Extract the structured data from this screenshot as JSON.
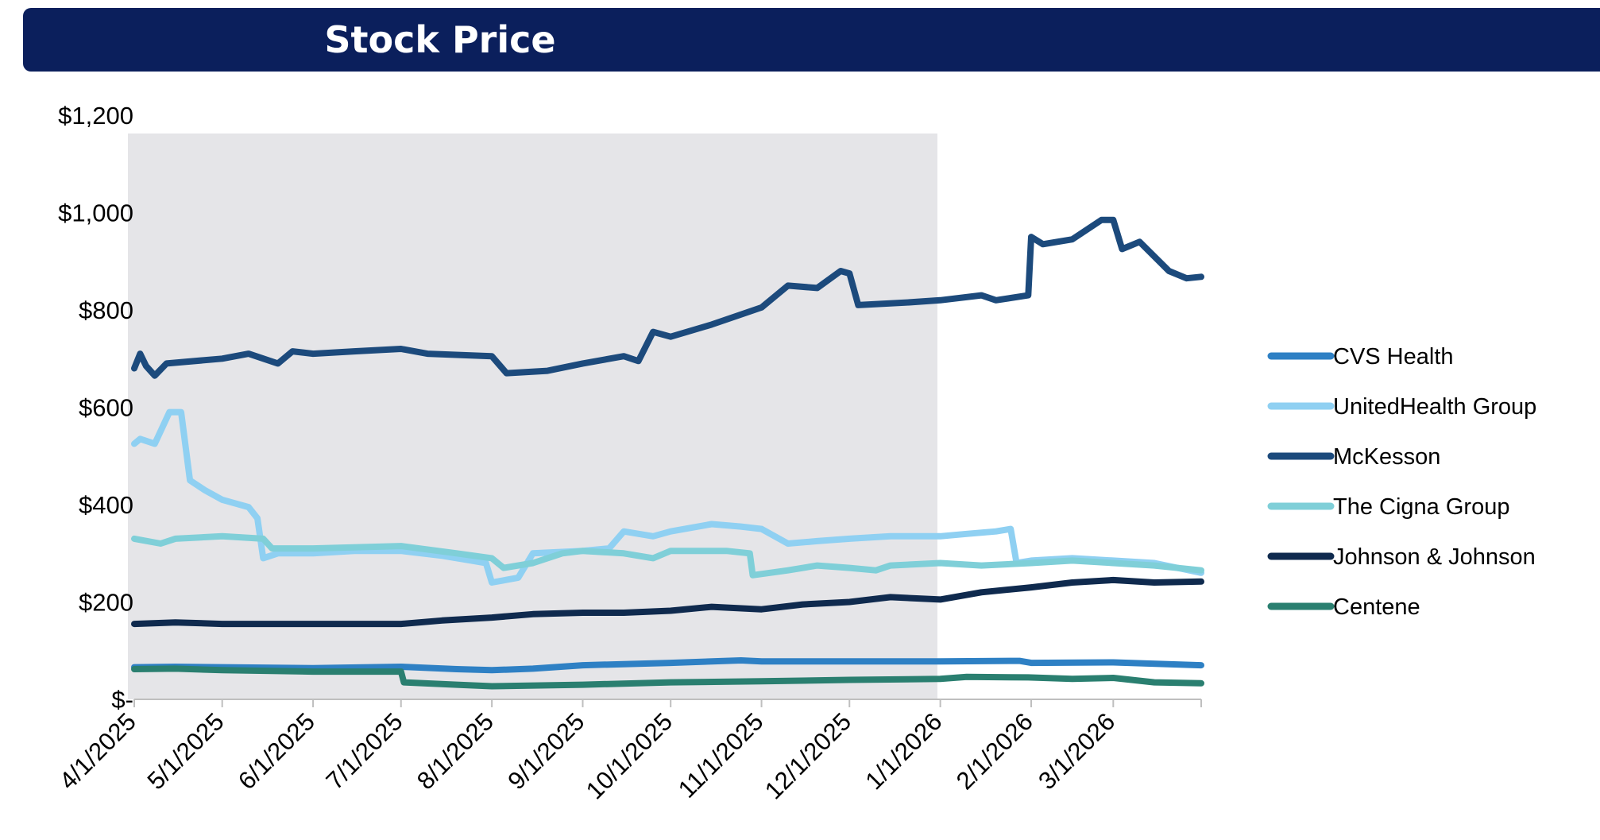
{
  "title": "Stock Price",
  "chart_data": {
    "type": "line",
    "title": "Stock Price",
    "xlabel": "",
    "ylabel": "",
    "ylim": [
      0,
      1200
    ],
    "y_ticks": [
      {
        "value": 0,
        "label": "$-"
      },
      {
        "value": 200,
        "label": "$200"
      },
      {
        "value": 400,
        "label": "$400"
      },
      {
        "value": 600,
        "label": "$600"
      },
      {
        "value": 800,
        "label": "$800"
      },
      {
        "value": 1000,
        "label": "$1,000"
      },
      {
        "value": 1200,
        "label": "$1,200"
      }
    ],
    "x_range": [
      "4/1/2025",
      "3/31/2026"
    ],
    "x_ticks": [
      "4/1/2025",
      "5/1/2025",
      "6/1/2025",
      "7/1/2025",
      "8/1/2025",
      "9/1/2025",
      "10/1/2025",
      "11/1/2025",
      "12/1/2025",
      "1/1/2026",
      "2/1/2026",
      "3/1/2026"
    ],
    "shaded_period": [
      "4/1/2025",
      "12/31/2025"
    ],
    "grid": false,
    "legend_position": "right",
    "series": [
      {
        "name": "CVS Health",
        "color": "#2e80c4",
        "points": [
          [
            "4/1/2025",
            66
          ],
          [
            "4/15/2025",
            67
          ],
          [
            "5/1/2025",
            66
          ],
          [
            "6/1/2025",
            64
          ],
          [
            "7/1/2025",
            67
          ],
          [
            "7/20/2025",
            62
          ],
          [
            "8/1/2025",
            60
          ],
          [
            "8/15/2025",
            63
          ],
          [
            "9/1/2025",
            70
          ],
          [
            "10/1/2025",
            75
          ],
          [
            "10/25/2025",
            80
          ],
          [
            "11/1/2025",
            78
          ],
          [
            "12/1/2025",
            78
          ],
          [
            "1/1/2026",
            78
          ],
          [
            "1/28/2026",
            79
          ],
          [
            "2/1/2026",
            75
          ],
          [
            "3/1/2026",
            76
          ],
          [
            "3/31/2026",
            70
          ]
        ]
      },
      {
        "name": "UnitedHealth Group",
        "color": "#8fd0f2",
        "points": [
          [
            "4/1/2025",
            525
          ],
          [
            "4/3/2025",
            535
          ],
          [
            "4/8/2025",
            525
          ],
          [
            "4/13/2025",
            590
          ],
          [
            "4/17/2025",
            590
          ],
          [
            "4/20/2025",
            450
          ],
          [
            "4/25/2025",
            430
          ],
          [
            "5/1/2025",
            410
          ],
          [
            "5/10/2025",
            395
          ],
          [
            "5/13/2025",
            372
          ],
          [
            "5/15/2025",
            290
          ],
          [
            "5/20/2025",
            300
          ],
          [
            "6/1/2025",
            300
          ],
          [
            "6/15/2025",
            305
          ],
          [
            "7/1/2025",
            305
          ],
          [
            "7/15/2025",
            295
          ],
          [
            "7/25/2025",
            285
          ],
          [
            "7/30/2025",
            280
          ],
          [
            "8/1/2025",
            240
          ],
          [
            "8/10/2025",
            250
          ],
          [
            "8/15/2025",
            300
          ],
          [
            "9/1/2025",
            305
          ],
          [
            "9/10/2025",
            310
          ],
          [
            "9/15/2025",
            345
          ],
          [
            "9/25/2025",
            335
          ],
          [
            "10/1/2025",
            345
          ],
          [
            "10/15/2025",
            360
          ],
          [
            "10/25/2025",
            355
          ],
          [
            "11/1/2025",
            350
          ],
          [
            "11/10/2025",
            320
          ],
          [
            "11/20/2025",
            325
          ],
          [
            "12/1/2025",
            330
          ],
          [
            "12/15/2025",
            335
          ],
          [
            "1/1/2026",
            335
          ],
          [
            "1/10/2026",
            340
          ],
          [
            "1/20/2026",
            345
          ],
          [
            "1/25/2026",
            350
          ],
          [
            "1/27/2026",
            280
          ],
          [
            "2/1/2026",
            285
          ],
          [
            "2/15/2026",
            290
          ],
          [
            "3/1/2026",
            285
          ],
          [
            "3/15/2026",
            280
          ],
          [
            "3/31/2026",
            260
          ]
        ]
      },
      {
        "name": "McKesson",
        "color": "#1c4a7c",
        "points": [
          [
            "4/1/2025",
            680
          ],
          [
            "4/3/2025",
            710
          ],
          [
            "4/5/2025",
            685
          ],
          [
            "4/8/2025",
            665
          ],
          [
            "4/12/2025",
            690
          ],
          [
            "5/1/2025",
            700
          ],
          [
            "5/10/2025",
            710
          ],
          [
            "5/20/2025",
            690
          ],
          [
            "5/25/2025",
            715
          ],
          [
            "6/1/2025",
            710
          ],
          [
            "6/15/2025",
            715
          ],
          [
            "7/1/2025",
            720
          ],
          [
            "7/10/2025",
            710
          ],
          [
            "8/1/2025",
            705
          ],
          [
            "8/6/2025",
            670
          ],
          [
            "8/20/2025",
            675
          ],
          [
            "9/1/2025",
            690
          ],
          [
            "9/15/2025",
            705
          ],
          [
            "9/20/2025",
            695
          ],
          [
            "9/25/2025",
            755
          ],
          [
            "10/1/2025",
            745
          ],
          [
            "10/15/2025",
            770
          ],
          [
            "11/1/2025",
            805
          ],
          [
            "11/10/2025",
            850
          ],
          [
            "11/20/2025",
            845
          ],
          [
            "11/28/2025",
            880
          ],
          [
            "12/1/2025",
            875
          ],
          [
            "12/4/2025",
            810
          ],
          [
            "12/20/2025",
            815
          ],
          [
            "1/1/2026",
            820
          ],
          [
            "1/15/2026",
            830
          ],
          [
            "1/20/2026",
            820
          ],
          [
            "1/31/2026",
            830
          ],
          [
            "2/1/2026",
            950
          ],
          [
            "2/5/2026",
            935
          ],
          [
            "2/15/2026",
            945
          ],
          [
            "2/25/2026",
            985
          ],
          [
            "3/1/2026",
            985
          ],
          [
            "3/4/2026",
            925
          ],
          [
            "3/10/2026",
            940
          ],
          [
            "3/20/2026",
            880
          ],
          [
            "3/26/2026",
            865
          ],
          [
            "3/31/2026",
            868
          ]
        ]
      },
      {
        "name": "The Cigna Group",
        "color": "#7fcfd8",
        "points": [
          [
            "4/1/2025",
            330
          ],
          [
            "4/10/2025",
            320
          ],
          [
            "4/15/2025",
            330
          ],
          [
            "5/1/2025",
            335
          ],
          [
            "5/15/2025",
            330
          ],
          [
            "5/18/2025",
            310
          ],
          [
            "6/1/2025",
            310
          ],
          [
            "7/1/2025",
            315
          ],
          [
            "7/20/2025",
            300
          ],
          [
            "8/1/2025",
            290
          ],
          [
            "8/5/2025",
            270
          ],
          [
            "8/15/2025",
            280
          ],
          [
            "8/25/2025",
            300
          ],
          [
            "9/1/2025",
            305
          ],
          [
            "9/15/2025",
            300
          ],
          [
            "9/25/2025",
            290
          ],
          [
            "10/1/2025",
            305
          ],
          [
            "10/20/2025",
            305
          ],
          [
            "10/28/2025",
            300
          ],
          [
            "10/29/2025",
            255
          ],
          [
            "11/10/2025",
            265
          ],
          [
            "11/20/2025",
            275
          ],
          [
            "12/1/2025",
            270
          ],
          [
            "12/10/2025",
            265
          ],
          [
            "12/15/2025",
            275
          ],
          [
            "1/1/2026",
            280
          ],
          [
            "1/15/2026",
            275
          ],
          [
            "2/1/2026",
            280
          ],
          [
            "2/15/2026",
            285
          ],
          [
            "3/1/2026",
            280
          ],
          [
            "3/15/2026",
            275
          ],
          [
            "3/31/2026",
            265
          ]
        ]
      },
      {
        "name": "Johnson & Johnson",
        "color": "#0f2a4e",
        "points": [
          [
            "4/1/2025",
            155
          ],
          [
            "4/15/2025",
            158
          ],
          [
            "5/1/2025",
            155
          ],
          [
            "6/1/2025",
            155
          ],
          [
            "7/1/2025",
            155
          ],
          [
            "7/15/2025",
            162
          ],
          [
            "8/1/2025",
            168
          ],
          [
            "8/15/2025",
            175
          ],
          [
            "9/1/2025",
            178
          ],
          [
            "9/15/2025",
            178
          ],
          [
            "10/1/2025",
            182
          ],
          [
            "10/15/2025",
            190
          ],
          [
            "11/1/2025",
            185
          ],
          [
            "11/15/2025",
            195
          ],
          [
            "12/1/2025",
            200
          ],
          [
            "12/15/2025",
            210
          ],
          [
            "1/1/2026",
            205
          ],
          [
            "1/15/2026",
            220
          ],
          [
            "2/1/2026",
            230
          ],
          [
            "2/15/2026",
            240
          ],
          [
            "3/1/2026",
            245
          ],
          [
            "3/15/2026",
            240
          ],
          [
            "3/31/2026",
            242
          ]
        ]
      },
      {
        "name": "Centene",
        "color": "#2a7f70",
        "points": [
          [
            "4/1/2025",
            62
          ],
          [
            "4/15/2025",
            63
          ],
          [
            "5/1/2025",
            60
          ],
          [
            "6/1/2025",
            57
          ],
          [
            "7/1/2025",
            57
          ],
          [
            "7/2/2025",
            35
          ],
          [
            "7/20/2025",
            30
          ],
          [
            "8/1/2025",
            27
          ],
          [
            "9/1/2025",
            30
          ],
          [
            "10/1/2025",
            35
          ],
          [
            "11/1/2025",
            37
          ],
          [
            "12/1/2025",
            40
          ],
          [
            "1/1/2026",
            42
          ],
          [
            "1/10/2026",
            46
          ],
          [
            "1/31/2026",
            45
          ],
          [
            "2/15/2026",
            42
          ],
          [
            "3/1/2026",
            44
          ],
          [
            "3/15/2026",
            35
          ],
          [
            "3/31/2026",
            33
          ]
        ]
      }
    ]
  }
}
